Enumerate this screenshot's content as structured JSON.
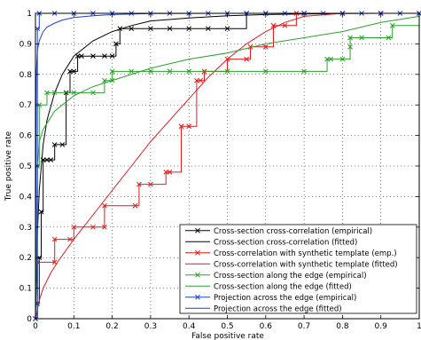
{
  "chart_data": {
    "type": "line",
    "title": "",
    "xlabel": "False positive rate",
    "ylabel": "True positive rate",
    "xlim": [
      0,
      1
    ],
    "ylim": [
      0,
      1
    ],
    "xticks": [
      "0",
      "0.1",
      "0.2",
      "0.3",
      "0.4",
      "0.5",
      "0.6",
      "0.7",
      "0.8",
      "0.9",
      "1"
    ],
    "yticks": [
      "0",
      "0.1",
      "0.2",
      "0.3",
      "0.4",
      "0.5",
      "0.6",
      "0.7",
      "0.8",
      "0.9",
      "1"
    ],
    "grid": true,
    "grid_style": "dotted",
    "legend_position": "lower-right",
    "series": [
      {
        "name": "Cross-section cross-correlation (empirical)",
        "color": "#000000",
        "style": "step-marker",
        "marker": "x",
        "x": [
          0,
          0.005,
          0.01,
          0.015,
          0.02,
          0.03,
          0.04,
          0.05,
          0.07,
          0.08,
          0.09,
          0.1,
          0.11,
          0.12,
          0.15,
          0.18,
          0.2,
          0.21,
          0.22,
          0.25,
          0.3,
          0.35,
          0.4,
          0.45,
          0.5,
          0.55,
          0.6,
          0.7,
          0.8,
          0.9,
          1.0
        ],
        "y": [
          0,
          0.05,
          0.2,
          0.35,
          0.52,
          0.52,
          0.52,
          0.57,
          0.57,
          0.74,
          0.81,
          0.81,
          0.86,
          0.86,
          0.86,
          0.86,
          0.86,
          0.9,
          0.95,
          0.95,
          0.95,
          0.95,
          0.95,
          0.95,
          0.95,
          1.0,
          1.0,
          1.0,
          1.0,
          1.0,
          1.0
        ]
      },
      {
        "name": "Cross-section cross-correlation (fitted)",
        "color": "#000000",
        "style": "line",
        "x": [
          0,
          0.005,
          0.01,
          0.02,
          0.03,
          0.05,
          0.07,
          0.1,
          0.15,
          0.2,
          0.25,
          0.3,
          0.4,
          0.5,
          0.6,
          0.7,
          0.8,
          0.9,
          1.0
        ],
        "y": [
          0,
          0.28,
          0.42,
          0.57,
          0.65,
          0.74,
          0.8,
          0.86,
          0.91,
          0.94,
          0.96,
          0.975,
          0.985,
          0.992,
          0.996,
          0.998,
          0.999,
          1.0,
          1.0
        ]
      },
      {
        "name": "Cross-correlation with synthetic template (emp.)",
        "color": "#e31a1c",
        "style": "step-marker",
        "marker": "x",
        "x": [
          0,
          0.005,
          0.05,
          0.05,
          0.09,
          0.1,
          0.15,
          0.18,
          0.18,
          0.26,
          0.27,
          0.3,
          0.34,
          0.35,
          0.38,
          0.4,
          0.42,
          0.43,
          0.44,
          0.5,
          0.55,
          0.56,
          0.6,
          0.62,
          0.65,
          0.68,
          0.7,
          0.8,
          0.9,
          1.0
        ],
        "y": [
          0,
          0.185,
          0.185,
          0.26,
          0.26,
          0.3,
          0.3,
          0.3,
          0.37,
          0.37,
          0.44,
          0.44,
          0.48,
          0.48,
          0.63,
          0.63,
          0.78,
          0.78,
          0.81,
          0.85,
          0.85,
          0.89,
          0.89,
          0.96,
          0.96,
          1.0,
          1.0,
          1.0,
          1.0,
          1.0
        ]
      },
      {
        "name": "Cross-correlation with synthetic template (fitted)",
        "color": "#e31a1c",
        "style": "line",
        "x": [
          0,
          0.01,
          0.02,
          0.04,
          0.06,
          0.1,
          0.15,
          0.2,
          0.25,
          0.3,
          0.35,
          0.4,
          0.45,
          0.5,
          0.55,
          0.6,
          0.65,
          0.7,
          0.8,
          0.9,
          1.0
        ],
        "y": [
          0,
          0.06,
          0.1,
          0.15,
          0.19,
          0.26,
          0.34,
          0.42,
          0.5,
          0.58,
          0.65,
          0.72,
          0.79,
          0.85,
          0.9,
          0.94,
          0.97,
          0.99,
          1.0,
          1.0,
          1.0
        ]
      },
      {
        "name": "Cross-section along the edge (empirical)",
        "color": "#2ca02c",
        "style": "step-marker",
        "marker": "x",
        "x": [
          0,
          0.005,
          0.01,
          0.03,
          0.05,
          0.1,
          0.15,
          0.18,
          0.2,
          0.2,
          0.25,
          0.3,
          0.35,
          0.4,
          0.5,
          0.6,
          0.7,
          0.76,
          0.77,
          0.8,
          0.82,
          0.82,
          0.85,
          0.92,
          0.93,
          1.0
        ],
        "y": [
          0,
          0.5,
          0.7,
          0.74,
          0.74,
          0.74,
          0.74,
          0.78,
          0.78,
          0.81,
          0.81,
          0.81,
          0.81,
          0.81,
          0.81,
          0.81,
          0.81,
          0.85,
          0.85,
          0.85,
          0.89,
          0.92,
          0.92,
          0.92,
          0.96,
          1.0
        ]
      },
      {
        "name": "Cross-section along the edge (fitted)",
        "color": "#2ca02c",
        "style": "line",
        "x": [
          0,
          0.005,
          0.01,
          0.02,
          0.05,
          0.1,
          0.15,
          0.2,
          0.3,
          0.4,
          0.5,
          0.6,
          0.7,
          0.8,
          0.9,
          1.0
        ],
        "y": [
          0,
          0.5,
          0.58,
          0.62,
          0.68,
          0.73,
          0.76,
          0.78,
          0.82,
          0.85,
          0.87,
          0.9,
          0.92,
          0.94,
          0.97,
          0.99
        ]
      },
      {
        "name": "Projection across the edge (empirical)",
        "color": "#1f3fd6",
        "style": "step-marker",
        "marker": "x",
        "x": [
          0,
          0.005,
          0.01,
          0.05,
          0.1,
          0.15,
          0.2,
          0.25,
          0.3,
          0.35,
          0.4,
          0.45,
          0.5,
          0.55,
          0.6,
          0.65,
          0.7,
          0.75,
          0.8,
          0.85,
          0.9,
          0.95,
          1.0
        ],
        "y": [
          0,
          0.95,
          1.0,
          1.0,
          1.0,
          1.0,
          1.0,
          1.0,
          1.0,
          1.0,
          1.0,
          1.0,
          1.0,
          1.0,
          1.0,
          1.0,
          1.0,
          1.0,
          1.0,
          1.0,
          1.0,
          1.0,
          1.0
        ]
      },
      {
        "name": "Projection across the edge (fitted)",
        "color": "#1f3fd6",
        "style": "line",
        "x": [
          0,
          0.002,
          0.005,
          0.01,
          0.02,
          0.03,
          0.05,
          0.07,
          0.1,
          0.15,
          0.2,
          0.3,
          0.5,
          1.0
        ],
        "y": [
          0,
          0.8,
          0.88,
          0.91,
          0.94,
          0.955,
          0.968,
          0.978,
          0.986,
          0.992,
          0.996,
          0.999,
          1.0,
          1.0
        ]
      }
    ]
  }
}
